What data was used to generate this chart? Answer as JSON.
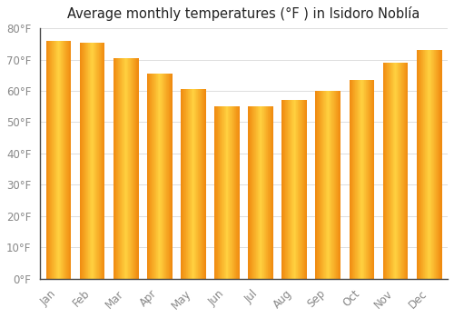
{
  "title": "Average monthly temperatures (°F ) in Isidoro Noblía",
  "months": [
    "Jan",
    "Feb",
    "Mar",
    "Apr",
    "May",
    "Jun",
    "Jul",
    "Aug",
    "Sep",
    "Oct",
    "Nov",
    "Dec"
  ],
  "values": [
    76,
    75.5,
    70.5,
    65.5,
    60.5,
    55,
    55,
    57,
    60,
    63.5,
    69,
    73
  ],
  "bar_color_center": "#FFB300",
  "bar_color_edge": "#F08000",
  "background_color": "#FFFFFF",
  "ylim": [
    0,
    80
  ],
  "yticks": [
    0,
    10,
    20,
    30,
    40,
    50,
    60,
    70,
    80
  ],
  "title_fontsize": 10.5,
  "tick_fontsize": 8.5,
  "grid_color": "#dddddd",
  "tick_color": "#888888",
  "spine_color": "#444444"
}
